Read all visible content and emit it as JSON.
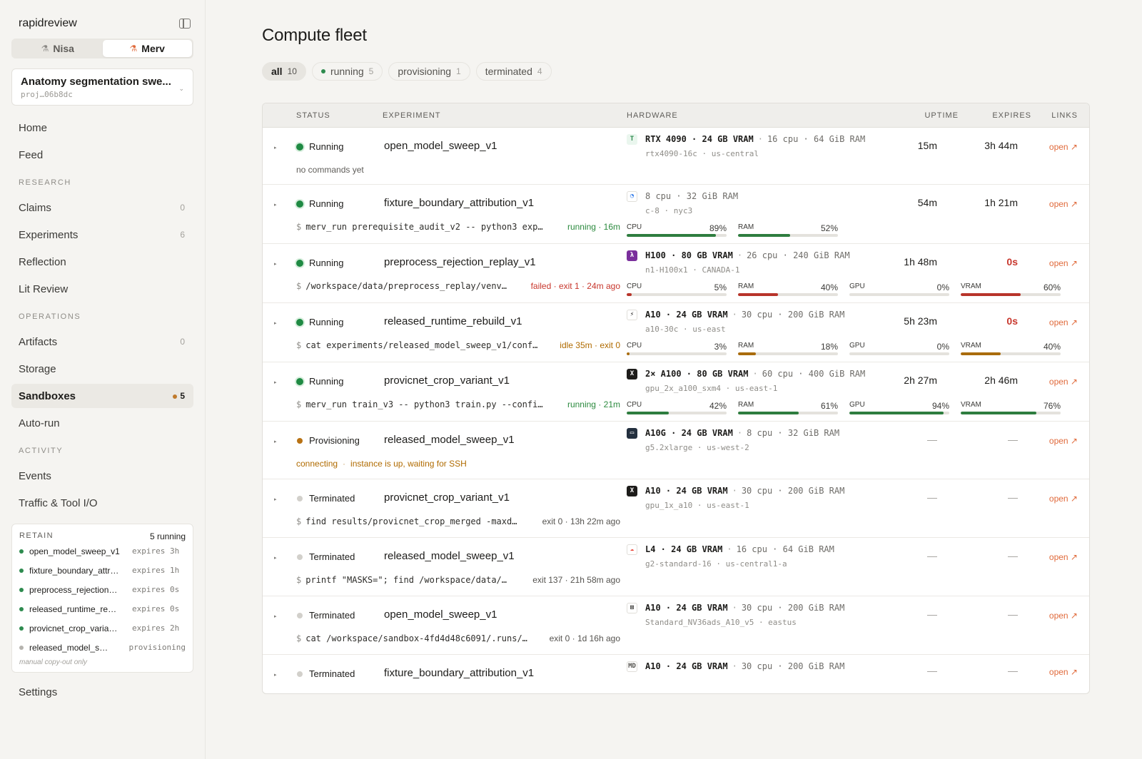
{
  "sidebar": {
    "brand": "rapidreview",
    "users": [
      {
        "label": "Nisa",
        "active": false
      },
      {
        "label": "Merv",
        "active": true
      }
    ],
    "project": {
      "name": "Anatomy segmentation swe...",
      "id": "proj…06b8dc"
    },
    "nav_top": [
      {
        "label": "Home"
      },
      {
        "label": "Feed"
      }
    ],
    "research_label": "RESEARCH",
    "research": [
      {
        "label": "Claims",
        "count": "0"
      },
      {
        "label": "Experiments",
        "count": "6"
      },
      {
        "label": "Reflection",
        "count": ""
      },
      {
        "label": "Lit Review",
        "count": ""
      }
    ],
    "operations_label": "OPERATIONS",
    "operations": [
      {
        "label": "Artifacts",
        "count": "0"
      },
      {
        "label": "Storage",
        "count": ""
      },
      {
        "label": "Sandboxes",
        "count": "5",
        "active": true
      },
      {
        "label": "Auto-run",
        "count": ""
      }
    ],
    "activity_label": "ACTIVITY",
    "activity": [
      {
        "label": "Events"
      },
      {
        "label": "Traffic & Tool I/O"
      }
    ],
    "retain": {
      "label": "RETAIN",
      "summary": "5 running",
      "items": [
        {
          "name": "open_model_sweep_v1",
          "exp": "expires 3h",
          "state": "running"
        },
        {
          "name": "fixture_boundary_attr…",
          "exp": "expires 1h",
          "state": "running"
        },
        {
          "name": "preprocess_rejection…",
          "exp": "expires 0s",
          "state": "running"
        },
        {
          "name": "released_runtime_re…",
          "exp": "expires 0s",
          "state": "running"
        },
        {
          "name": "provicnet_crop_varia…",
          "exp": "expires 2h",
          "state": "running"
        },
        {
          "name": "released_model_s…",
          "exp": "provisioning",
          "state": "provisioning"
        }
      ],
      "footer": "manual copy-out only"
    },
    "settings": "Settings"
  },
  "main": {
    "title": "Compute fleet",
    "filters": [
      {
        "label": "all",
        "count": "10",
        "active": true,
        "dot": false
      },
      {
        "label": "running",
        "count": "5",
        "active": false,
        "dot": true
      },
      {
        "label": "provisioning",
        "count": "1",
        "active": false,
        "dot": false
      },
      {
        "label": "terminated",
        "count": "4",
        "active": false,
        "dot": false
      }
    ],
    "columns": {
      "status": "STATUS",
      "experiment": "EXPERIMENT",
      "hardware": "HARDWARE",
      "uptime": "UPTIME",
      "expires": "EXPIRES",
      "links": "LINKS"
    },
    "rows": [
      {
        "status": "Running",
        "state": "run",
        "experiment": "open_model_sweep_v1",
        "cmd_type": "plain",
        "cmd": "no commands yet",
        "cmd_status": "",
        "cmd_status_color": "",
        "hw_icon": "tensordock-icon",
        "hw_icon_glyph": "T",
        "hw_icon_color": "#2e8b4f",
        "hw_icon_bg": "#eaf6ee",
        "hw_main": "RTX 4090 · 24 GB VRAM",
        "hw_rest": "16 cpu · 64 GiB RAM",
        "hw_sub": "rtx4090-16c · us-central",
        "meters": [],
        "uptime": "15m",
        "expires": "3h 44m",
        "expires_red": false,
        "link": "open ↗"
      },
      {
        "status": "Running",
        "state": "run",
        "experiment": "fixture_boundary_attribution_v1",
        "cmd_type": "cmd",
        "cmd": "merv_run prerequisite_audit_v2 -- python3 exp…",
        "cmd_status": "running · 16m",
        "cmd_status_color": "green",
        "hw_icon": "digitalocean-icon",
        "hw_icon_glyph": "◔",
        "hw_icon_color": "#1c6ee8",
        "hw_icon_bg": "#ffffff",
        "hw_main": "",
        "hw_rest": "8 cpu · 32 GiB RAM",
        "hw_sub": "c-8 · nyc3",
        "meters": [
          {
            "label": "CPU",
            "pct": "89%",
            "value": 0.89,
            "color": "green"
          },
          {
            "label": "RAM",
            "pct": "52%",
            "value": 0.52,
            "color": "green"
          }
        ],
        "uptime": "54m",
        "expires": "1h 21m",
        "expires_red": false,
        "link": "open ↗"
      },
      {
        "status": "Running",
        "state": "run",
        "experiment": "preprocess_rejection_replay_v1",
        "cmd_type": "cmd",
        "cmd": "/workspace/data/preprocess_replay/venv…",
        "cmd_status": "failed · exit 1 · 24m ago",
        "cmd_status_color": "red",
        "hw_icon": "lambda-icon",
        "hw_icon_glyph": "λ",
        "hw_icon_color": "#ffffff",
        "hw_icon_bg": "#7a2f9c",
        "hw_main": "H100 · 80 GB VRAM",
        "hw_rest": "26 cpu · 240 GiB RAM",
        "hw_sub": "n1-H100x1 · CANADA-1",
        "meters": [
          {
            "label": "CPU",
            "pct": "5%",
            "value": 0.05,
            "color": "red"
          },
          {
            "label": "RAM",
            "pct": "40%",
            "value": 0.4,
            "color": "red"
          },
          {
            "label": "GPU",
            "pct": "0%",
            "value": 0.0,
            "color": "red"
          },
          {
            "label": "VRAM",
            "pct": "60%",
            "value": 0.6,
            "color": "red"
          }
        ],
        "uptime": "1h 48m",
        "expires": "0s",
        "expires_red": true,
        "link": "open ↗"
      },
      {
        "status": "Running",
        "state": "run",
        "experiment": "released_runtime_rebuild_v1",
        "cmd_type": "cmd",
        "cmd": "cat experiments/released_model_sweep_v1/conf…",
        "cmd_status": "idle 35m · exit 0",
        "cmd_status_color": "amber",
        "hw_icon": "bolt-icon",
        "hw_icon_glyph": "⚡",
        "hw_icon_color": "#1d1c1a",
        "hw_icon_bg": "#ffffff",
        "hw_main": "A10 · 24 GB VRAM",
        "hw_rest": "30 cpu · 200 GiB RAM",
        "hw_sub": "a10-30c · us-east",
        "meters": [
          {
            "label": "CPU",
            "pct": "3%",
            "value": 0.03,
            "color": "amber"
          },
          {
            "label": "RAM",
            "pct": "18%",
            "value": 0.18,
            "color": "amber"
          },
          {
            "label": "GPU",
            "pct": "0%",
            "value": 0.0,
            "color": "amber"
          },
          {
            "label": "VRAM",
            "pct": "40%",
            "value": 0.4,
            "color": "amber"
          }
        ],
        "uptime": "5h 23m",
        "expires": "0s",
        "expires_red": true,
        "link": "open ↗"
      },
      {
        "status": "Running",
        "state": "run",
        "experiment": "provicnet_crop_variant_v1",
        "cmd_type": "cmd",
        "cmd": "merv_run train_v3 -- python3 train.py --confi…",
        "cmd_status": "running · 21m",
        "cmd_status_color": "green",
        "hw_icon": "crusoe-icon",
        "hw_icon_glyph": "X",
        "hw_icon_color": "#ffffff",
        "hw_icon_bg": "#1d1c1a",
        "hw_main": "2× A100 · 80 GB VRAM",
        "hw_rest": "60 cpu · 400 GiB RAM",
        "hw_sub": "gpu_2x_a100_sxm4 · us-east-1",
        "meters": [
          {
            "label": "CPU",
            "pct": "42%",
            "value": 0.42,
            "color": "green"
          },
          {
            "label": "RAM",
            "pct": "61%",
            "value": 0.61,
            "color": "green"
          },
          {
            "label": "GPU",
            "pct": "94%",
            "value": 0.94,
            "color": "green"
          },
          {
            "label": "VRAM",
            "pct": "76%",
            "value": 0.76,
            "color": "green"
          }
        ],
        "uptime": "2h 27m",
        "expires": "2h 46m",
        "expires_red": false,
        "link": "open ↗"
      },
      {
        "status": "Provisioning",
        "state": "prov",
        "experiment": "released_model_sweep_v1",
        "cmd_type": "conn",
        "cmd": "connecting",
        "cmd_status": "instance is up, waiting for SSH",
        "cmd_status_color": "amber",
        "hw_icon": "aws-icon",
        "hw_icon_glyph": "▭",
        "hw_icon_color": "#ffffff",
        "hw_icon_bg": "#232f3e",
        "hw_main": "A10G · 24 GB VRAM",
        "hw_rest": "8 cpu · 32 GiB RAM",
        "hw_sub": "g5.2xlarge · us-west-2",
        "meters": [],
        "uptime": "—",
        "expires": "—",
        "expires_red": false,
        "link": "open ↗"
      },
      {
        "status": "Terminated",
        "state": "term",
        "experiment": "provicnet_crop_variant_v1",
        "cmd_type": "cmd",
        "cmd": "find results/provicnet_crop_merged -maxd…",
        "cmd_status": "exit 0 · 13h 22m ago",
        "cmd_status_color": "",
        "hw_icon": "crusoe-icon",
        "hw_icon_glyph": "X",
        "hw_icon_color": "#ffffff",
        "hw_icon_bg": "#1d1c1a",
        "hw_main": "A10 · 24 GB VRAM",
        "hw_rest": "30 cpu · 200 GiB RAM",
        "hw_sub": "gpu_1x_a10 · us-east-1",
        "meters": [],
        "uptime": "—",
        "expires": "—",
        "expires_red": false,
        "link": "open ↗"
      },
      {
        "status": "Terminated",
        "state": "term",
        "experiment": "released_model_sweep_v1",
        "cmd_type": "cmd",
        "cmd": "printf \"MASKS=\"; find /workspace/data/…",
        "cmd_status": "exit 137 · 21h 58m ago",
        "cmd_status_color": "",
        "hw_icon": "gcp-icon",
        "hw_icon_glyph": "☁",
        "hw_icon_color": "#ea4335",
        "hw_icon_bg": "#ffffff",
        "hw_main": "L4 · 24 GB VRAM",
        "hw_rest": "16 cpu · 64 GiB RAM",
        "hw_sub": "g2-standard-16 · us-central1-a",
        "meters": [],
        "uptime": "—",
        "expires": "—",
        "expires_red": false,
        "link": "open ↗"
      },
      {
        "status": "Terminated",
        "state": "term",
        "experiment": "open_model_sweep_v1",
        "cmd_type": "cmd",
        "cmd": "cat /workspace/sandbox-4fd4d48c6091/.runs/…",
        "cmd_status": "exit 0 · 1d 16h ago",
        "cmd_status_color": "",
        "hw_icon": "azure-icon",
        "hw_icon_glyph": "⊞",
        "hw_icon_color": "#1d1c1a",
        "hw_icon_bg": "#ffffff",
        "hw_main": "A10 · 24 GB VRAM",
        "hw_rest": "30 cpu · 200 GiB RAM",
        "hw_sub": "Standard_NV36ads_A10_v5 · eastus",
        "meters": [],
        "uptime": "—",
        "expires": "—",
        "expires_red": false,
        "link": "open ↗"
      },
      {
        "status": "Terminated",
        "state": "term",
        "experiment": "fixture_boundary_attribution_v1",
        "cmd_type": "none",
        "cmd": "",
        "cmd_status": "",
        "cmd_status_color": "",
        "hw_icon": "md-icon",
        "hw_icon_glyph": "MD",
        "hw_icon_color": "#55534f",
        "hw_icon_bg": "#ffffff",
        "hw_main": "A10 · 24 GB VRAM",
        "hw_rest": "30 cpu · 200 GiB RAM",
        "hw_sub": "",
        "meters": [],
        "uptime": "—",
        "expires": "—",
        "expires_red": false,
        "link": "open ↗"
      }
    ]
  }
}
